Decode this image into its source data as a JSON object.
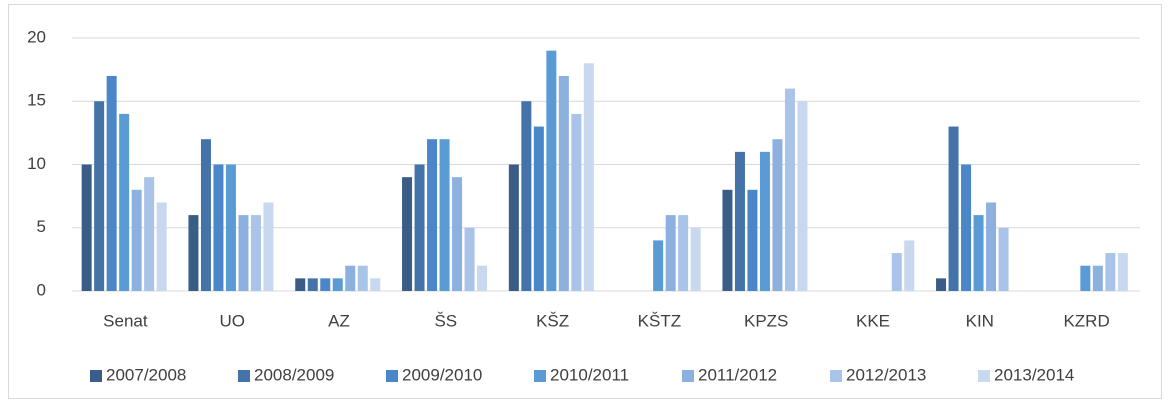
{
  "chart_data": {
    "type": "bar",
    "categories": [
      "Senat",
      "UO",
      "AZ",
      "ŠS",
      "KŠZ",
      "KŠTZ",
      "KPZS",
      "KKE",
      "KIN",
      "KZRD"
    ],
    "series": [
      {
        "name": "2007/2008",
        "color": "#3a5d88",
        "values": [
          10,
          6,
          1,
          9,
          10,
          0,
          8,
          0,
          1,
          0
        ]
      },
      {
        "name": "2008/2009",
        "color": "#4473aa",
        "values": [
          15,
          12,
          1,
          10,
          15,
          0,
          11,
          0,
          13,
          0
        ]
      },
      {
        "name": "2009/2010",
        "color": "#4b86c8",
        "values": [
          17,
          10,
          1,
          12,
          13,
          0,
          8,
          0,
          10,
          0
        ]
      },
      {
        "name": "2010/2011",
        "color": "#5b9bd5",
        "values": [
          14,
          10,
          1,
          12,
          19,
          4,
          11,
          0,
          6,
          2
        ]
      },
      {
        "name": "2011/2012",
        "color": "#8db1de",
        "values": [
          8,
          6,
          2,
          9,
          17,
          6,
          12,
          0,
          7,
          2
        ]
      },
      {
        "name": "2012/2013",
        "color": "#a9c4e8",
        "values": [
          9,
          6,
          2,
          5,
          14,
          6,
          16,
          3,
          5,
          3
        ]
      },
      {
        "name": "2013/2014",
        "color": "#c8d8ee",
        "values": [
          7,
          7,
          1,
          2,
          18,
          5,
          15,
          4,
          0,
          3
        ]
      }
    ],
    "ylim": [
      0,
      20
    ],
    "yticks": [
      0,
      5,
      10,
      15,
      20
    ],
    "grid": true,
    "legend": "bottom"
  }
}
